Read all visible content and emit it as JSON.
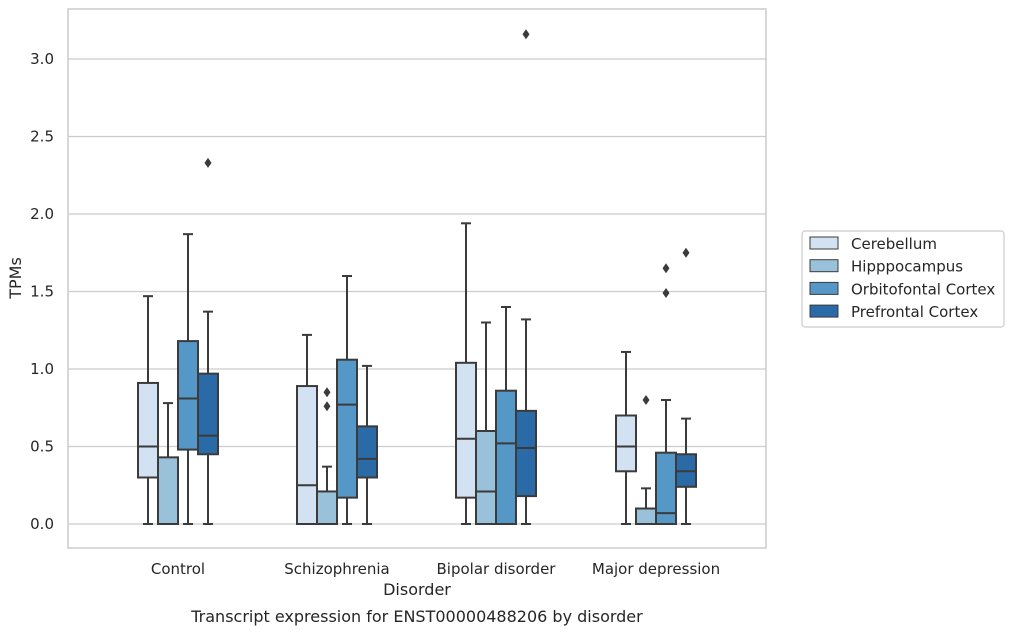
{
  "chart_data": {
    "type": "box",
    "xlabel": "Disorder",
    "ylabel": "TPMs",
    "caption": "Transcript expression for ENST00000488206 by disorder",
    "ylim": [
      -0.15,
      3.33
    ],
    "yticks": [
      "0.0",
      "0.5",
      "1.0",
      "1.5",
      "2.0",
      "2.5",
      "3.0"
    ],
    "grid": "horizontal",
    "legend_position": "right",
    "categories": [
      "Control",
      "Schizophrenia",
      "Bipolar disorder",
      "Major depression"
    ],
    "series": [
      {
        "name": "Cerebellum",
        "color": "#d3e2f2",
        "boxes": [
          {
            "whisker_low": 0.0,
            "q1": 0.3,
            "median": 0.5,
            "q3": 0.91,
            "whisker_high": 1.47,
            "outliers": []
          },
          {
            "whisker_low": 0.0,
            "q1": 0.0,
            "median": 0.25,
            "q3": 0.89,
            "whisker_high": 1.22,
            "outliers": []
          },
          {
            "whisker_low": 0.0,
            "q1": 0.17,
            "median": 0.55,
            "q3": 1.04,
            "whisker_high": 1.94,
            "outliers": []
          },
          {
            "whisker_low": 0.0,
            "q1": 0.34,
            "median": 0.5,
            "q3": 0.7,
            "whisker_high": 1.11,
            "outliers": []
          }
        ]
      },
      {
        "name": "Hipppocampus",
        "color": "#9ac1da",
        "boxes": [
          {
            "whisker_low": 0.0,
            "q1": 0.0,
            "median": 0.0,
            "q3": 0.43,
            "whisker_high": 0.78,
            "outliers": []
          },
          {
            "whisker_low": 0.0,
            "q1": 0.0,
            "median": 0.0,
            "q3": 0.21,
            "whisker_high": 0.37,
            "outliers": [
              0.76,
              0.85
            ]
          },
          {
            "whisker_low": 0.0,
            "q1": 0.0,
            "median": 0.21,
            "q3": 0.6,
            "whisker_high": 1.3,
            "outliers": []
          },
          {
            "whisker_low": 0.0,
            "q1": 0.0,
            "median": 0.0,
            "q3": 0.1,
            "whisker_high": 0.23,
            "outliers": [
              0.8
            ]
          }
        ]
      },
      {
        "name": "Orbitofontal Cortex",
        "color": "#5597c6",
        "boxes": [
          {
            "whisker_low": 0.0,
            "q1": 0.48,
            "median": 0.81,
            "q3": 1.18,
            "whisker_high": 1.87,
            "outliers": []
          },
          {
            "whisker_low": 0.0,
            "q1": 0.17,
            "median": 0.77,
            "q3": 1.06,
            "whisker_high": 1.6,
            "outliers": []
          },
          {
            "whisker_low": 0.0,
            "q1": 0.0,
            "median": 0.52,
            "q3": 0.86,
            "whisker_high": 1.4,
            "outliers": []
          },
          {
            "whisker_low": 0.0,
            "q1": 0.0,
            "median": 0.07,
            "q3": 0.46,
            "whisker_high": 0.8,
            "outliers": [
              1.65,
              1.49
            ]
          }
        ]
      },
      {
        "name": "Prefrontal Cortex",
        "color": "#2a6aa6",
        "boxes": [
          {
            "whisker_low": 0.0,
            "q1": 0.45,
            "median": 0.57,
            "q3": 0.97,
            "whisker_high": 1.37,
            "outliers": [
              2.33
            ]
          },
          {
            "whisker_low": 0.0,
            "q1": 0.3,
            "median": 0.42,
            "q3": 0.63,
            "whisker_high": 1.02,
            "outliers": []
          },
          {
            "whisker_low": 0.0,
            "q1": 0.18,
            "median": 0.49,
            "q3": 0.73,
            "whisker_high": 1.32,
            "outliers": [
              3.16
            ]
          },
          {
            "whisker_low": 0.0,
            "q1": 0.24,
            "median": 0.34,
            "q3": 0.45,
            "whisker_high": 0.68,
            "outliers": [
              1.75
            ]
          }
        ]
      }
    ]
  }
}
